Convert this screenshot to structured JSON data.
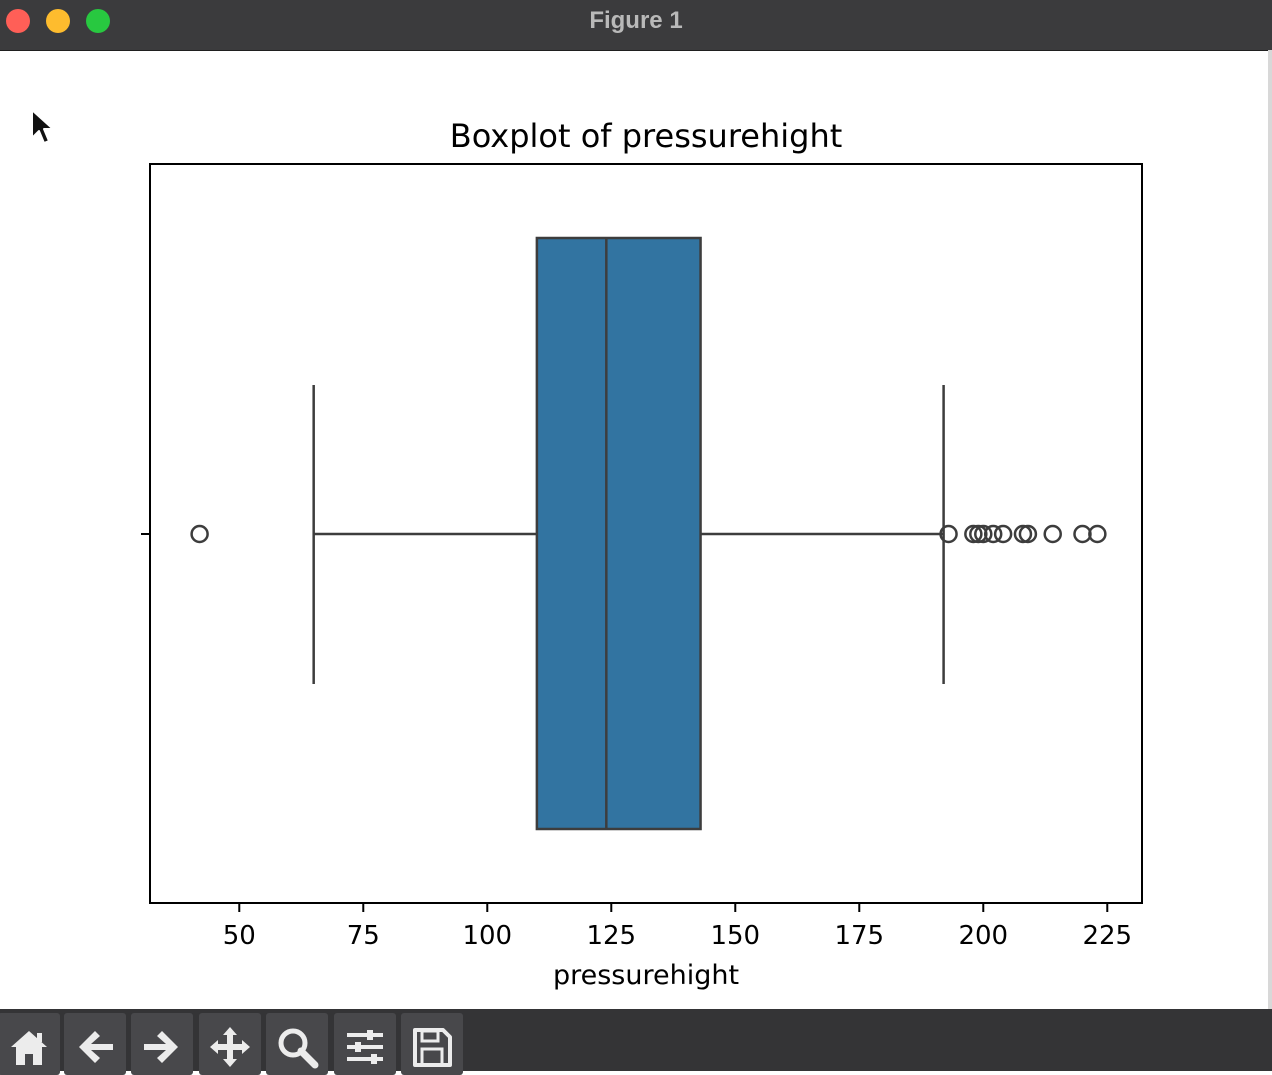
{
  "window": {
    "title": "Figure 1",
    "controls": [
      "close",
      "minimize",
      "maximize"
    ]
  },
  "toolbar": {
    "buttons": [
      {
        "name": "home",
        "icon": "home-icon"
      },
      {
        "name": "back",
        "icon": "back-arrow-icon"
      },
      {
        "name": "forward",
        "icon": "forward-arrow-icon"
      },
      {
        "name": "pan",
        "icon": "move-icon"
      },
      {
        "name": "zoom",
        "icon": "magnifier-icon"
      },
      {
        "name": "configure-subplots",
        "icon": "sliders-icon"
      },
      {
        "name": "save",
        "icon": "floppy-disk-icon"
      }
    ]
  },
  "chart_data": {
    "type": "boxplot",
    "orientation": "horizontal",
    "title": "Boxplot of pressurehight",
    "xlabel": "pressurehight",
    "ylabel": "",
    "xlim": [
      32,
      232
    ],
    "xticks": [
      50,
      75,
      100,
      125,
      150,
      175,
      200,
      225
    ],
    "box": {
      "whisker_low": 65,
      "q1": 110,
      "median": 124,
      "q3": 143,
      "whisker_high": 192
    },
    "outliers": [
      42,
      193,
      198,
      199,
      200,
      202,
      204,
      208,
      209,
      214,
      220,
      223
    ],
    "box_color": "#3274a1",
    "line_color": "#3d3d3d",
    "grid": false
  }
}
